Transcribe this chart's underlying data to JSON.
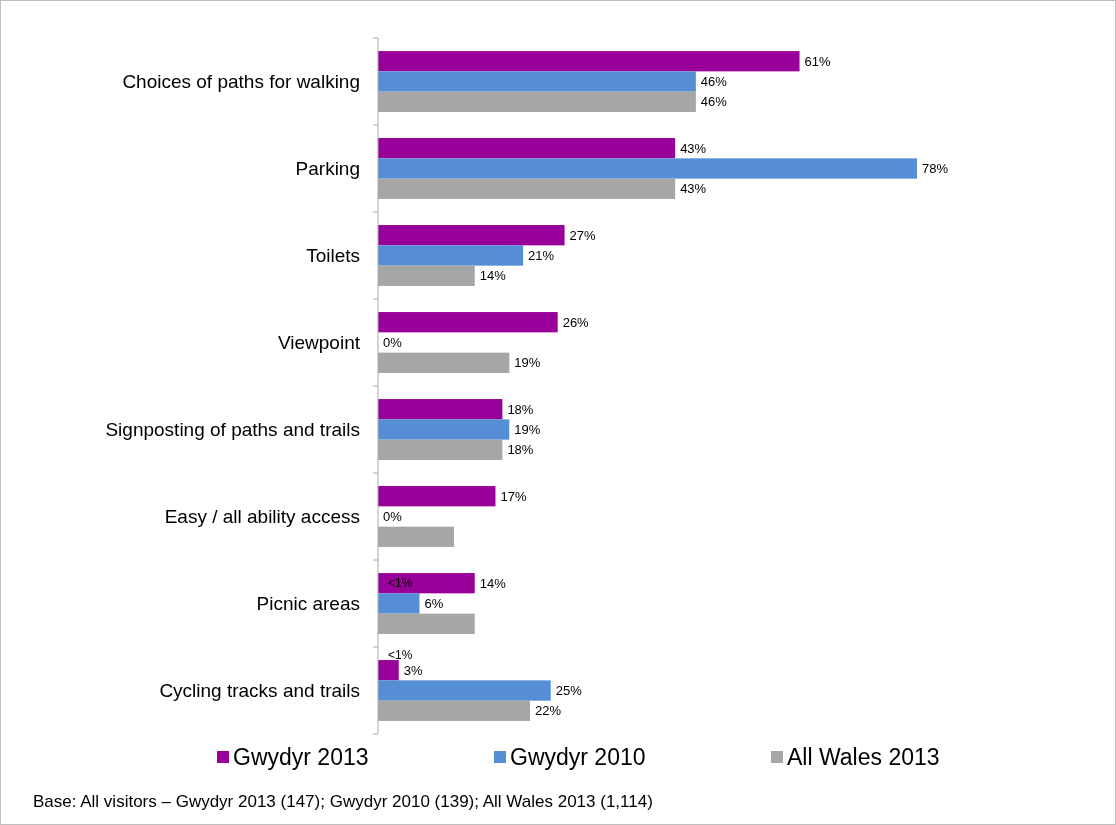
{
  "chart_data": {
    "type": "bar",
    "orientation": "horizontal",
    "categories": [
      "Choices of paths for walking",
      "Parking",
      "Toilets",
      "Viewpoint",
      "Signposting of paths and trails",
      "Easy / all ability access",
      "Picnic areas",
      "Cycling tracks and trails"
    ],
    "series": [
      {
        "name": "Gwydyr 2013",
        "color": "#990099",
        "values": [
          61,
          43,
          27,
          26,
          18,
          17,
          14,
          3
        ],
        "value_labels": [
          "61%",
          "43%",
          "27%",
          "26%",
          "18%",
          "17%",
          "14%",
          "3%"
        ]
      },
      {
        "name": "Gwydyr 2010",
        "color": "#558ed5",
        "values": [
          46,
          78,
          21,
          0,
          19,
          0,
          6,
          25
        ],
        "value_labels": [
          "46%",
          "78%",
          "21%",
          "0%",
          "19%",
          "0%",
          "6%",
          "25%"
        ]
      },
      {
        "name": "All Wales 2013",
        "color": "#a6a6a6",
        "values": [
          46,
          43,
          14,
          19,
          18,
          11,
          14,
          22
        ],
        "value_labels": [
          "46%",
          "43%",
          "14%",
          "19%",
          "18%",
          null,
          null,
          "22%"
        ]
      }
    ],
    "legend": "bottom",
    "annotations": [
      "<1%",
      "<1%",
      "Base: All visitors – Gwydyr 2013 (147); Gwydyr 2010 (139); All Wales 2013 (1,114)"
    ]
  }
}
